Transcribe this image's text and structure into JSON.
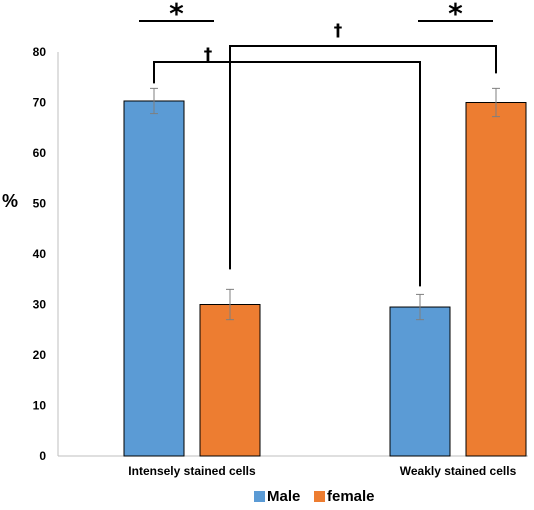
{
  "chart_data": {
    "type": "bar",
    "categories": [
      "Intensely stained cells",
      "Weakly stained cells"
    ],
    "series": [
      {
        "name": "Male",
        "color": "#5B9BD5",
        "values": [
          70.3,
          29.5
        ],
        "errors": [
          2.5,
          2.5
        ]
      },
      {
        "name": "female",
        "color": "#ED7D31",
        "values": [
          30.0,
          70.0
        ],
        "errors": [
          3.0,
          2.8
        ]
      }
    ],
    "ylabel": "%",
    "ylim": [
      0,
      80
    ],
    "yticks": [
      0,
      10,
      20,
      30,
      40,
      50,
      60,
      70,
      80
    ],
    "grid": false,
    "legend_position": "bottom",
    "annotations": [
      {
        "symbol": "*",
        "meaning": "within-category comparison",
        "category": 0
      },
      {
        "symbol": "*",
        "meaning": "within-category comparison",
        "category": 1
      },
      {
        "symbol": "†",
        "meaning": "cross-category male comparison"
      },
      {
        "symbol": "†",
        "meaning": "cross-category female comparison"
      }
    ]
  }
}
